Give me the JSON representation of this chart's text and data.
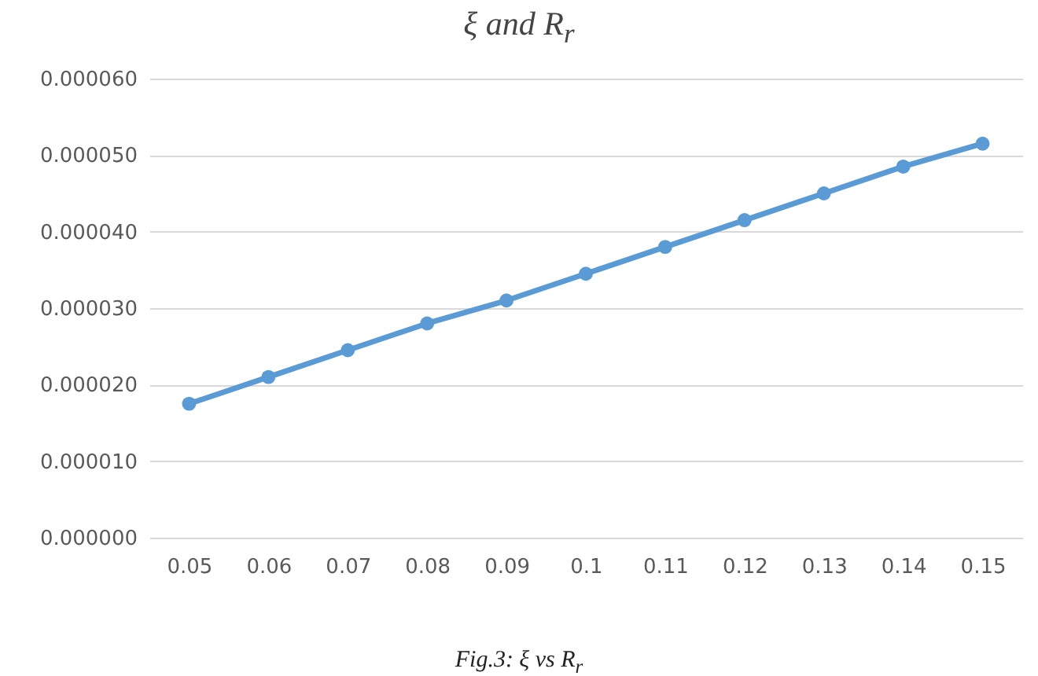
{
  "chart_data": {
    "type": "line",
    "title": "ξ and R$_{r}$",
    "annotations": [
      "Fig.3: ξ vs R$_{r}$"
    ],
    "categories": [
      "0.05",
      "0.06",
      "0.07",
      "0.08",
      "0.09",
      "0.1",
      "0.11",
      "0.12",
      "0.13",
      "0.14",
      "0.15"
    ],
    "series": [
      {
        "color": "#5b9bd5",
        "values": [
          1.75e-05,
          2.1e-05,
          2.45e-05,
          2.8e-05,
          3.1e-05,
          3.45e-05,
          3.8e-05,
          4.15e-05,
          4.5e-05,
          4.85e-05,
          5.15e-05
        ]
      }
    ],
    "ylim": [
      0,
      6e-05
    ],
    "yticks": [
      {
        "value": 0,
        "label": "0.000000"
      },
      {
        "value": 1e-05,
        "label": "0.000010"
      },
      {
        "value": 2e-05,
        "label": "0.000020"
      },
      {
        "value": 3e-05,
        "label": "0.000030"
      },
      {
        "value": 4e-05,
        "label": "0.000040"
      },
      {
        "value": 5e-05,
        "label": "0.000050"
      },
      {
        "value": 6e-05,
        "label": "0.000060"
      }
    ],
    "grid": "y",
    "marker": "circle"
  }
}
